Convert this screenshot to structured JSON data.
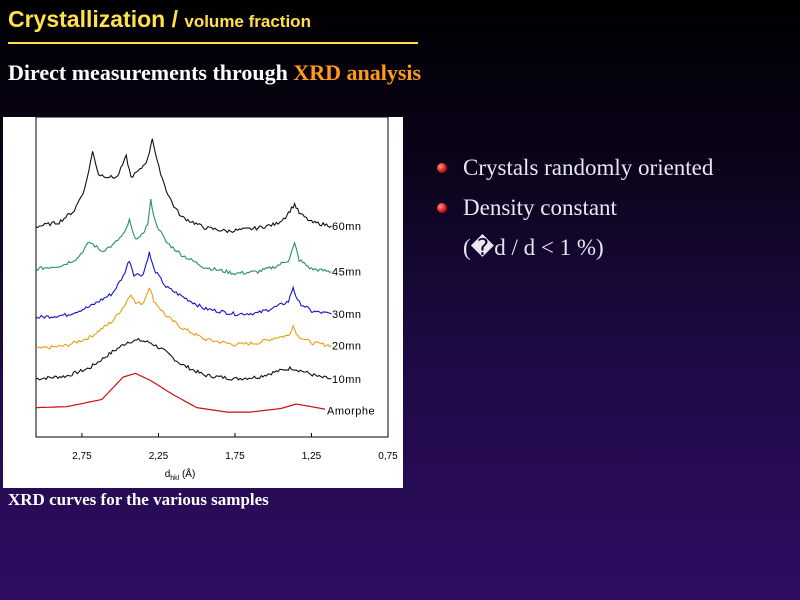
{
  "slide": {
    "title": "Crystallization / ",
    "title_sub": "volume fraction",
    "subheading": "Direct measurements through ",
    "subheading_highlight": "XRD analysis",
    "caption": "XRD curves for the various samples",
    "bullets": [
      "Crystals randomly oriented",
      "Density constant"
    ],
    "bullet_sub": "(�d / d < 1 %)",
    "colors": {
      "title": "#ffe14a",
      "highlight": "#ff9a1a",
      "bullet": "#d01818"
    }
  },
  "chart_data": {
    "type": "line",
    "xlabel": "dhkl (Å)",
    "xlabel_main": "d",
    "xlabel_sub": "hkl",
    "xlabel_unit": " (Å)",
    "ylabel": "",
    "x_reversed": true,
    "xlim": [
      3.05,
      0.75
    ],
    "x_ticks": [
      2.75,
      2.25,
      1.75,
      1.25,
      0.75
    ],
    "x_tick_labels": [
      "2,75",
      "2,25",
      "1,75",
      "1,25",
      "0,75"
    ],
    "grid": false,
    "series": [
      {
        "name": "Amorphe",
        "color": "#cc1111",
        "points": [
          [
            3.05,
            6
          ],
          [
            2.85,
            7
          ],
          [
            2.62,
            15
          ],
          [
            2.48,
            40
          ],
          [
            2.4,
            44
          ],
          [
            2.3,
            36
          ],
          [
            2.15,
            20
          ],
          [
            2.0,
            6
          ],
          [
            1.8,
            1
          ],
          [
            1.65,
            1
          ],
          [
            1.45,
            5
          ],
          [
            1.35,
            10
          ],
          [
            1.25,
            7
          ],
          [
            1.12,
            3
          ]
        ]
      },
      {
        "name": "10mn",
        "color": "#111111",
        "points": [
          [
            3.05,
            38
          ],
          [
            2.85,
            41
          ],
          [
            2.7,
            50
          ],
          [
            2.55,
            68
          ],
          [
            2.45,
            79
          ],
          [
            2.38,
            81
          ],
          [
            2.3,
            78
          ],
          [
            2.22,
            70
          ],
          [
            2.1,
            54
          ],
          [
            1.95,
            42
          ],
          [
            1.75,
            38
          ],
          [
            1.6,
            40
          ],
          [
            1.48,
            46
          ],
          [
            1.38,
            50
          ],
          [
            1.3,
            46
          ],
          [
            1.2,
            40
          ],
          [
            1.12,
            38
          ]
        ]
      },
      {
        "name": "20mn",
        "color": "#e8a018",
        "points": [
          [
            3.05,
            71
          ],
          [
            2.85,
            75
          ],
          [
            2.7,
            84
          ],
          [
            2.55,
            102
          ],
          [
            2.47,
            120
          ],
          [
            2.43,
            133
          ],
          [
            2.4,
            122
          ],
          [
            2.35,
            122
          ],
          [
            2.31,
            140
          ],
          [
            2.28,
            125
          ],
          [
            2.2,
            108
          ],
          [
            2.1,
            95
          ],
          [
            1.95,
            82
          ],
          [
            1.75,
            76
          ],
          [
            1.6,
            78
          ],
          [
            1.48,
            84
          ],
          [
            1.4,
            86
          ],
          [
            1.37,
            97
          ],
          [
            1.34,
            86
          ],
          [
            1.25,
            78
          ],
          [
            1.12,
            75
          ]
        ]
      },
      {
        "name": "30mn",
        "color": "#1515cc",
        "points": [
          [
            3.05,
            106
          ],
          [
            2.85,
            109
          ],
          [
            2.7,
            118
          ],
          [
            2.55,
            133
          ],
          [
            2.48,
            152
          ],
          [
            2.44,
            170
          ],
          [
            2.41,
            154
          ],
          [
            2.35,
            154
          ],
          [
            2.31,
            178
          ],
          [
            2.28,
            160
          ],
          [
            2.2,
            140
          ],
          [
            2.1,
            130
          ],
          [
            1.95,
            116
          ],
          [
            1.75,
            110
          ],
          [
            1.6,
            111
          ],
          [
            1.48,
            118
          ],
          [
            1.4,
            124
          ],
          [
            1.37,
            140
          ],
          [
            1.34,
            124
          ],
          [
            1.25,
            113
          ],
          [
            1.12,
            110
          ]
        ]
      },
      {
        "name": "45mn",
        "color": "#2a8e6a",
        "points": [
          [
            3.05,
            160
          ],
          [
            2.88,
            164
          ],
          [
            2.78,
            172
          ],
          [
            2.7,
            190
          ],
          [
            2.62,
            180
          ],
          [
            2.55,
            186
          ],
          [
            2.47,
            200
          ],
          [
            2.44,
            214
          ],
          [
            2.41,
            196
          ],
          [
            2.37,
            194
          ],
          [
            2.32,
            210
          ],
          [
            2.3,
            236
          ],
          [
            2.27,
            212
          ],
          [
            2.2,
            190
          ],
          [
            2.1,
            176
          ],
          [
            1.95,
            162
          ],
          [
            1.75,
            155
          ],
          [
            1.6,
            157
          ],
          [
            1.48,
            163
          ],
          [
            1.4,
            170
          ],
          [
            1.36,
            188
          ],
          [
            1.33,
            170
          ],
          [
            1.25,
            160
          ],
          [
            1.12,
            157
          ]
        ]
      },
      {
        "name": "60mn",
        "color": "#111111",
        "points": [
          [
            3.05,
            207
          ],
          [
            2.9,
            212
          ],
          [
            2.8,
            225
          ],
          [
            2.73,
            250
          ],
          [
            2.68,
            290
          ],
          [
            2.64,
            265
          ],
          [
            2.56,
            262
          ],
          [
            2.52,
            262
          ],
          [
            2.46,
            285
          ],
          [
            2.43,
            262
          ],
          [
            2.37,
            270
          ],
          [
            2.32,
            282
          ],
          [
            2.29,
            306
          ],
          [
            2.26,
            280
          ],
          [
            2.2,
            248
          ],
          [
            2.15,
            230
          ],
          [
            2.1,
            218
          ],
          [
            1.95,
            206
          ],
          [
            1.8,
            202
          ],
          [
            1.62,
            205
          ],
          [
            1.48,
            210
          ],
          [
            1.42,
            218
          ],
          [
            1.39,
            225
          ],
          [
            1.36,
            232
          ],
          [
            1.33,
            222
          ],
          [
            1.25,
            212
          ],
          [
            1.12,
            208
          ]
        ]
      }
    ]
  }
}
